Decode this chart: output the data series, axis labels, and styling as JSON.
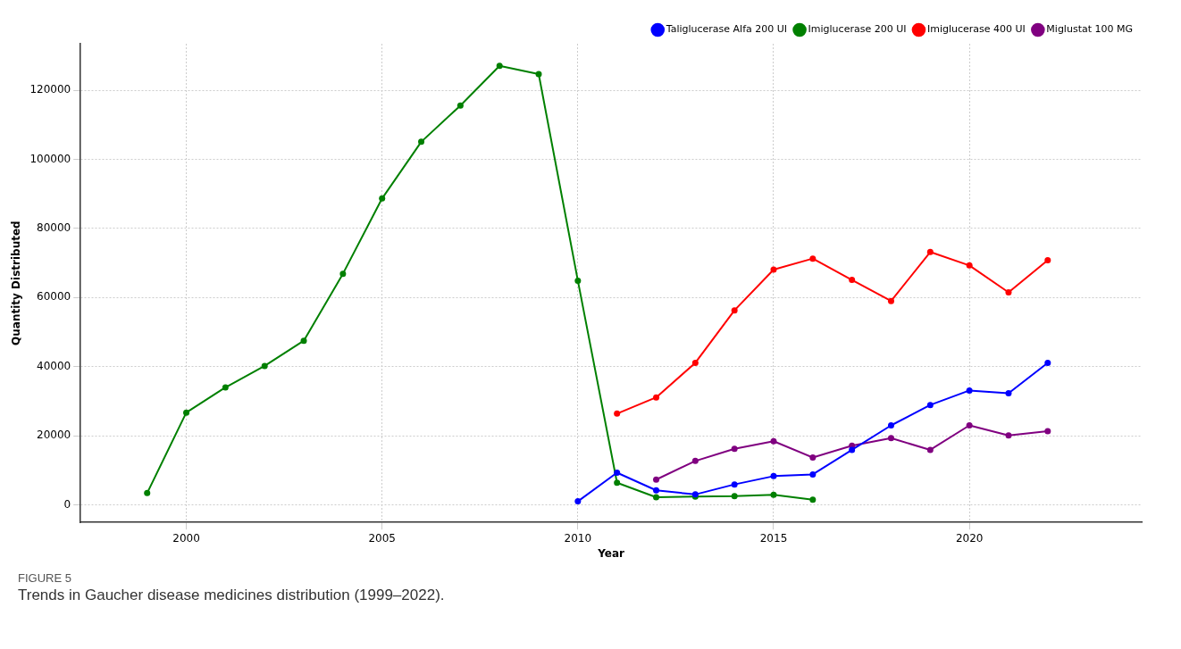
{
  "chart_data": {
    "type": "line",
    "xlabel": "Year",
    "ylabel": "Quantity Distributed",
    "annotations": [
      "FIGURE 5",
      "Trends in Gaucher disease medicines distribution (1999–2022)."
    ],
    "xlim": [
      1997.3,
      2024.4
    ],
    "xticks": [
      2000,
      2005,
      2010,
      2015,
      2020
    ],
    "ylim": [
      -5100,
      133500
    ],
    "yticks": [
      0,
      20000,
      40000,
      60000,
      80000,
      100000,
      120000
    ],
    "grid": true,
    "legend": "top right",
    "marker": "circle",
    "line_style": "solid",
    "series": [
      {
        "name": "Taliglucerase Alfa 200 UI",
        "color": "#0000ff",
        "x": [
          2010,
          2011,
          2012,
          2013,
          2014,
          2015,
          2016,
          2017,
          2018,
          2019,
          2020,
          2021,
          2022
        ],
        "values": [
          1000,
          9300,
          4200,
          3000,
          5900,
          8300,
          8800,
          15900,
          23000,
          28900,
          33100,
          32300,
          41100
        ]
      },
      {
        "name": "Imiglucerase 200 UI",
        "color": "#008000",
        "x": [
          1999,
          2000,
          2001,
          2002,
          2003,
          2004,
          2005,
          2006,
          2007,
          2008,
          2009,
          2010,
          2011,
          2012,
          2013,
          2014,
          2015,
          2016
        ],
        "values": [
          3400,
          26700,
          34000,
          40200,
          47500,
          66900,
          88700,
          105100,
          115600,
          127100,
          124700,
          64900,
          6400,
          2200,
          2400,
          2500,
          2900,
          1500
        ]
      },
      {
        "name": "Imiglucerase 400 UI",
        "color": "#ff0000",
        "x": [
          2011,
          2012,
          2013,
          2014,
          2015,
          2016,
          2017,
          2018,
          2019,
          2020,
          2021,
          2022
        ],
        "values": [
          26400,
          31100,
          41100,
          56300,
          68100,
          71300,
          65100,
          59000,
          73200,
          69300,
          61500,
          70800
        ]
      },
      {
        "name": "Miglustat 100 MG",
        "color": "#800080",
        "x": [
          2012,
          2013,
          2014,
          2015,
          2016,
          2017,
          2018,
          2019,
          2020,
          2021,
          2022
        ],
        "values": [
          7300,
          12700,
          16200,
          18400,
          13700,
          17100,
          19300,
          15900,
          23000,
          20100,
          21300
        ]
      }
    ]
  }
}
